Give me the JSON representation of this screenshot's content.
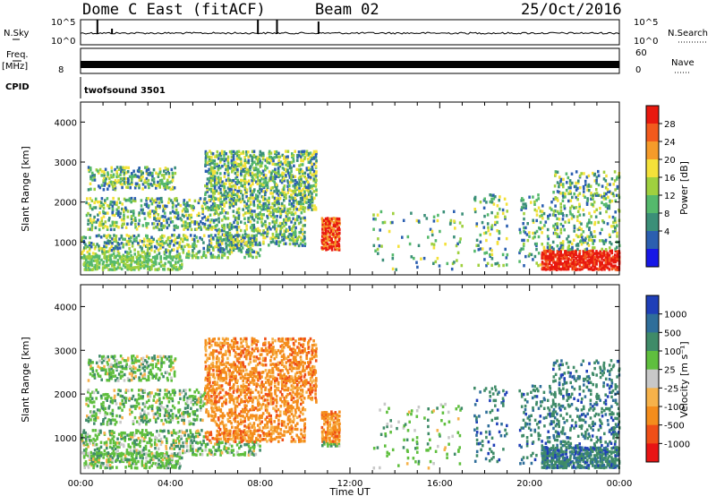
{
  "header": {
    "title": "Dome C East (fitACF)",
    "beam": "Beam 02",
    "date": "25/Oct/2016"
  },
  "strip": {
    "nsky_label": "N.Sky",
    "nsky_ticks": [
      "10^5",
      "10^0"
    ],
    "nsearch_label": "N.Search",
    "nsearch_ticks": [
      "10^5",
      "10^0"
    ],
    "freq_label": "Freq.",
    "freq_unit": "[MHz]",
    "freq_tick": "8",
    "nave_label": "Nave",
    "nave_ticks": [
      "60",
      "0"
    ],
    "cpid_label": "CPID",
    "cpid_value": "twofsound 3501"
  },
  "chart_data": [
    {
      "type": "heatmap",
      "name": "power-panel",
      "xlabel": "",
      "ylabel": "Slant Range [km]",
      "x_range_hours": [
        0,
        24
      ],
      "y_range_km": [
        180,
        4500
      ],
      "y_ticks": [
        "4000",
        "3000",
        "2000",
        "1000"
      ],
      "colorbar": {
        "label": "Power [dB]",
        "ticks": [
          "28",
          "24",
          "20",
          "16",
          "12",
          "8",
          "4"
        ],
        "colors": [
          "#e8190f",
          "#f25a1d",
          "#f59b2a",
          "#f4e13a",
          "#9fd03f",
          "#55b96c",
          "#3b8f78",
          "#2b5fb0",
          "#1717e6"
        ]
      }
    },
    {
      "type": "heatmap",
      "name": "velocity-panel",
      "xlabel": "Time UT",
      "ylabel": "Slant Range [km]",
      "x_range_hours": [
        0,
        24
      ],
      "y_range_km": [
        180,
        4500
      ],
      "y_ticks": [
        "4000",
        "3000",
        "2000",
        "1000"
      ],
      "x_ticks": [
        "00:00",
        "04:00",
        "08:00",
        "12:00",
        "16:00",
        "20:00",
        "00:00"
      ],
      "colorbar": {
        "label": "Velocity [m s⁻¹]",
        "ticks": [
          "1000",
          "500",
          "100",
          "25",
          "-25",
          "-100",
          "-500",
          "-1000"
        ],
        "colors": [
          "#1f3fb8",
          "#2f6e9a",
          "#3f8b68",
          "#5fbf3e",
          "#c8c8c8",
          "#f6b24a",
          "#f48d1c",
          "#ef4f17",
          "#e81414"
        ]
      }
    }
  ]
}
